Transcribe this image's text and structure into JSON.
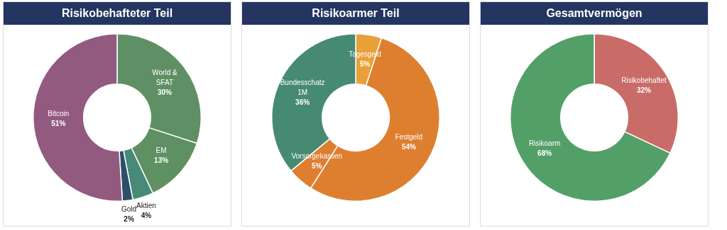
{
  "chart_data": [
    {
      "type": "donut",
      "title": "Risikobehafteter Teil",
      "categories": [
        "World & SFAT",
        "EM",
        "Aktien",
        "Gold",
        "Bitcoin"
      ],
      "values": [
        30,
        13,
        4,
        2,
        51
      ],
      "value_labels": [
        "30%",
        "13%",
        "4%",
        "2%",
        "51%"
      ],
      "colors": [
        "#5f9065",
        "#5e9063",
        "#478a78",
        "#2b5068",
        "#935a80"
      ],
      "legend": false
    },
    {
      "type": "donut",
      "title": "Risikoarmer Teil",
      "categories": [
        "Tagesgeld",
        "Festgeld",
        "Vorsorgekassen",
        "Bundesschatz 1M"
      ],
      "values": [
        5,
        54,
        5,
        36
      ],
      "value_labels": [
        "5%",
        "54%",
        "5%",
        "36%"
      ],
      "colors": [
        "#e8a038",
        "#de7f30",
        "#dd7e31",
        "#478a74"
      ],
      "legend": false
    },
    {
      "type": "donut",
      "title": "Gesamtvermögen",
      "categories": [
        "Risikobehaftet",
        "Risikoarm"
      ],
      "values": [
        32,
        68
      ],
      "value_labels": [
        "32%",
        "68%"
      ],
      "colors": [
        "#c96c68",
        "#52a068"
      ],
      "legend": false
    }
  ]
}
